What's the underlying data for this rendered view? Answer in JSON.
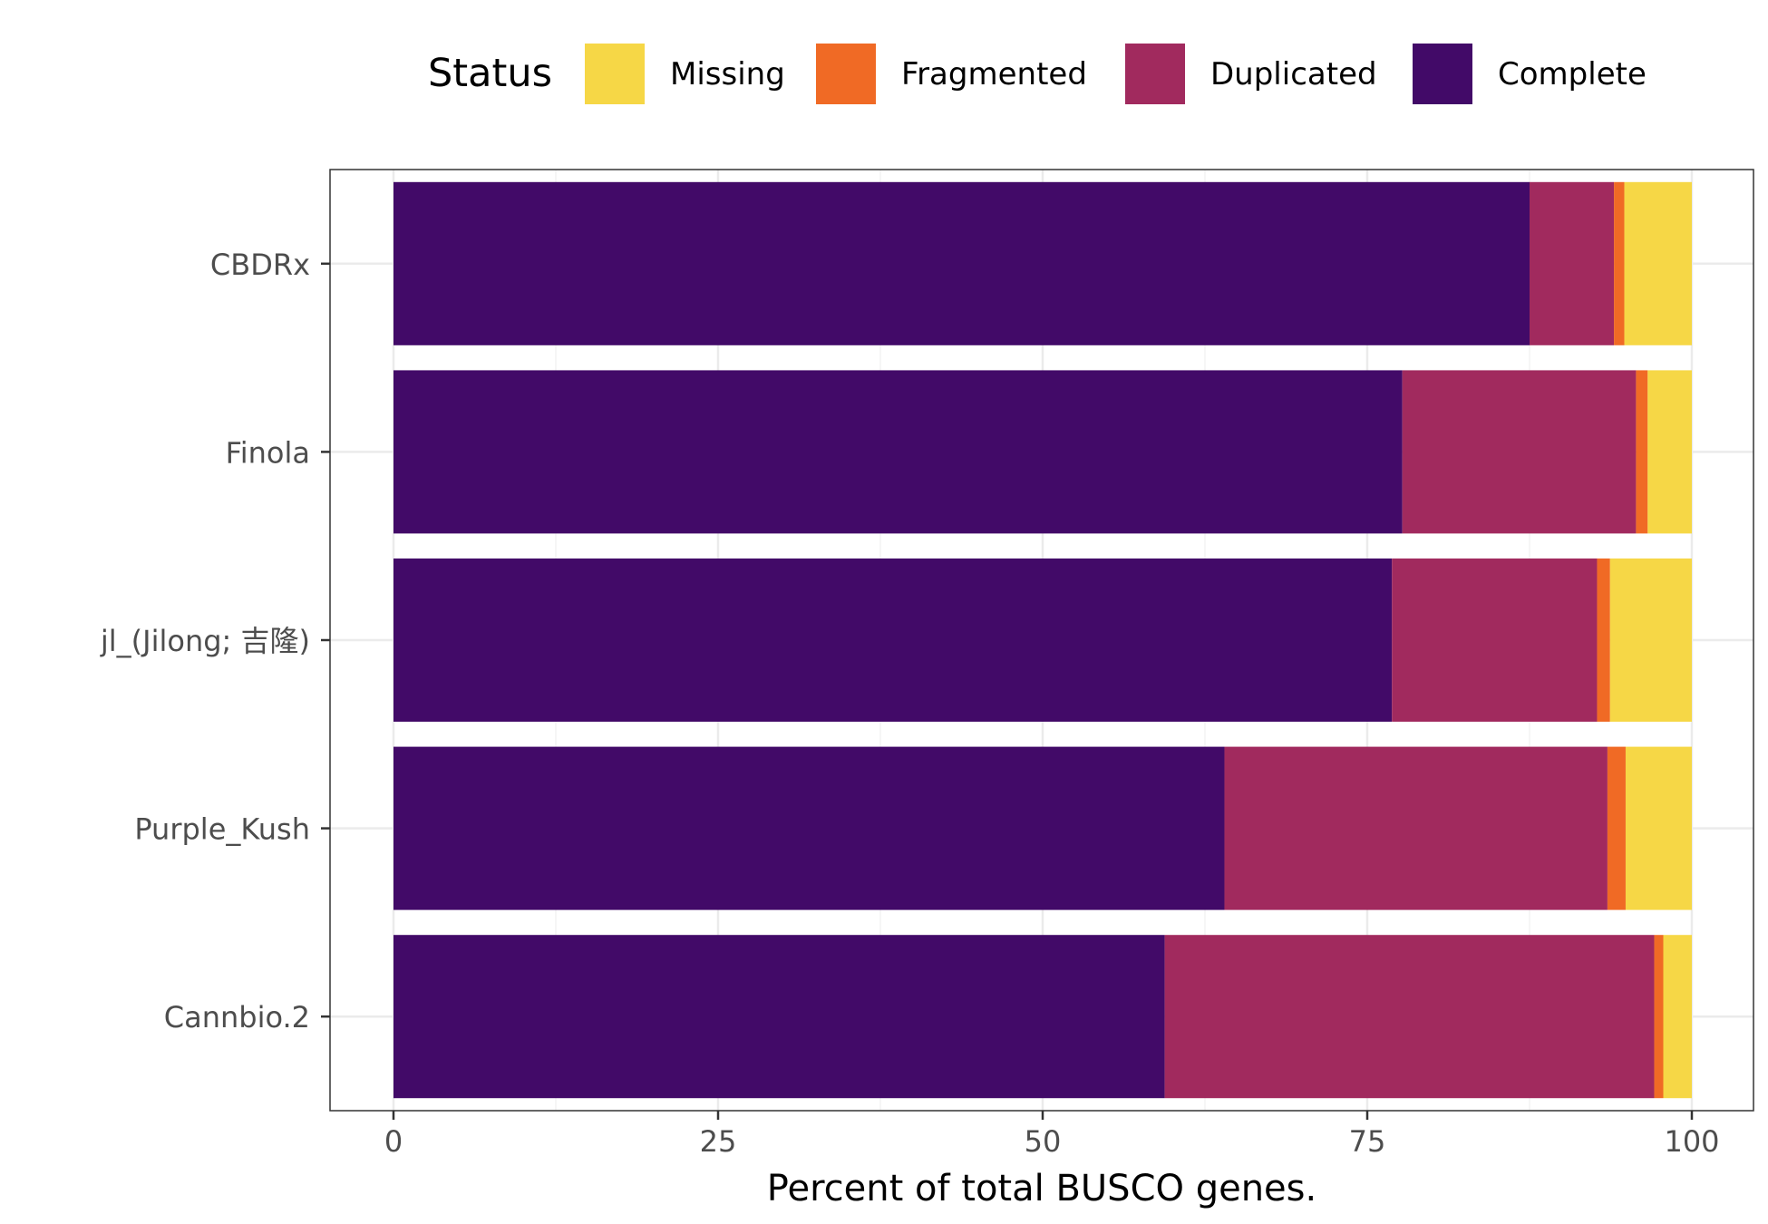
{
  "chart_data": {
    "type": "bar",
    "orientation": "horizontal",
    "stacked": true,
    "categories": [
      "CBDRx",
      "Finola",
      "jl_(Jilong; 吉隆)",
      "Purple_Kush",
      "Cannbio.2"
    ],
    "series": [
      {
        "name": "Complete",
        "color": "#420A68",
        "values": [
          87.5,
          77.7,
          76.9,
          64.0,
          59.4
        ]
      },
      {
        "name": "Duplicated",
        "color": "#A12A5E",
        "values": [
          6.5,
          18.0,
          15.8,
          29.5,
          37.7
        ]
      },
      {
        "name": "Fragmented",
        "color": "#F06A25",
        "values": [
          0.8,
          0.9,
          1.0,
          1.4,
          0.7
        ]
      },
      {
        "name": "Missing",
        "color": "#F6D746",
        "values": [
          5.2,
          3.4,
          6.3,
          5.1,
          2.2
        ]
      }
    ],
    "legend": {
      "title": "Status",
      "position": "top",
      "order": [
        "Missing",
        "Fragmented",
        "Duplicated",
        "Complete"
      ]
    },
    "xlabel": "Percent of total BUSCO genes.",
    "ylabel": "",
    "xlim": [
      0,
      100
    ],
    "xticks": [
      0,
      25,
      50,
      75,
      100
    ],
    "grid": true
  }
}
